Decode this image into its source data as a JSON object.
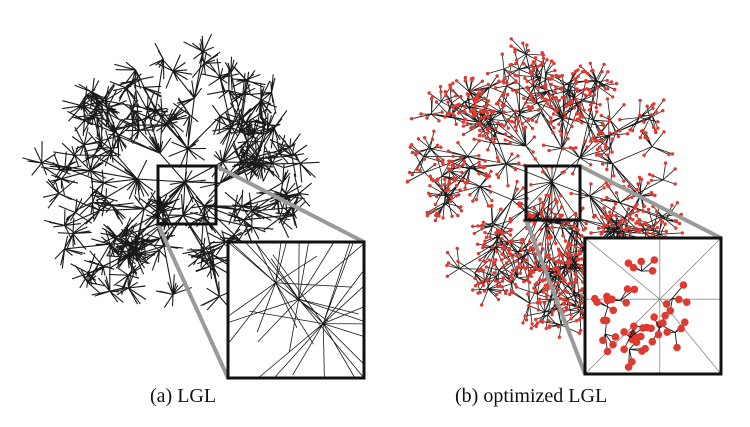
{
  "captions": {
    "a": "(a)  LGL",
    "b": "(b)  optimized LGL"
  },
  "panels": [
    {
      "id": "a",
      "node_markers": false
    },
    {
      "id": "b",
      "node_markers": true
    }
  ],
  "colors": {
    "edge": "#1a1a1a",
    "node": "#e03a30",
    "zoom_connector": "#9a9a9a",
    "zoom_frame": "#111111",
    "inset_background": "#ffffff",
    "inset_divider": "#8a8a8a"
  },
  "icons": [
    "network-graph",
    "zoom-box",
    "magnified-inset"
  ]
}
